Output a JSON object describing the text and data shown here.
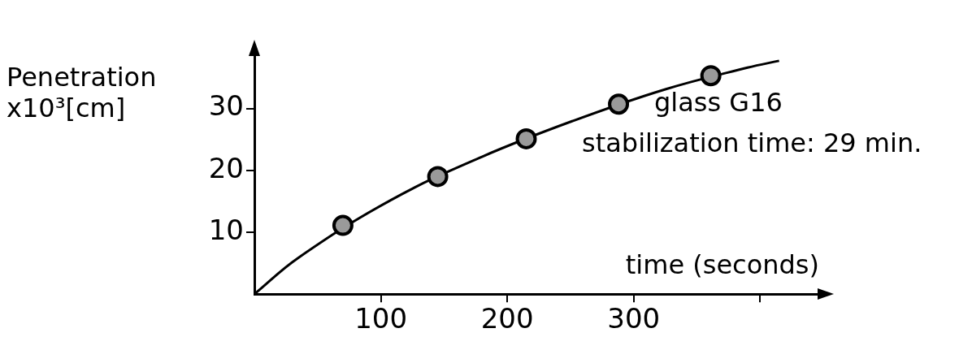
{
  "chart_data": {
    "type": "scatter",
    "ylabel": "Penetration\nx10³[cm]",
    "xlabel": "time (seconds)",
    "annotations": [
      "glass G16",
      "stabilization time: 29 min."
    ],
    "xlim": [
      0,
      448
    ],
    "ylim": [
      0,
      39
    ],
    "xticks": [
      100,
      200,
      300,
      {
        "value": 400,
        "label": null
      }
    ],
    "yticks": [
      10,
      20,
      30
    ],
    "grid": false,
    "marker": "circle",
    "series": [
      {
        "color": "#9a9a9a",
        "x": [
          70,
          145,
          215,
          288,
          361
        ],
        "values": [
          11.1,
          19.0,
          25.1,
          30.7,
          35.3
        ]
      },
      {
        "type": "line",
        "color": "#000000",
        "marker": "none",
        "x": [
          0,
          35,
          108,
          180,
          252,
          325,
          390,
          415
        ],
        "values": [
          0,
          5.9,
          15.2,
          22.2,
          28.0,
          33.1,
          36.6,
          37.7
        ]
      }
    ]
  }
}
